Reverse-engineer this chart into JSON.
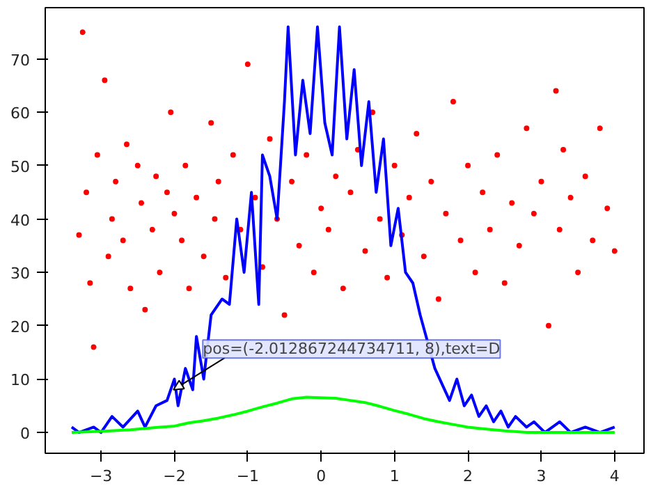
{
  "chart_data": {
    "type": "line",
    "xlim": [
      -3.76,
      4.4
    ],
    "ylim": [
      -3.9,
      79.6
    ],
    "xticks": [
      -3,
      -2,
      -1,
      0,
      1,
      2,
      3,
      4
    ],
    "yticks": [
      0,
      10,
      20,
      30,
      40,
      50,
      60,
      70
    ],
    "grid": false,
    "annotations": [
      {
        "text": "pos=(-2.012867244734711, 8),text=D",
        "x": -2.012867244734711,
        "y": 8
      }
    ],
    "series": [
      {
        "type": "scatter",
        "marker": "circle",
        "color": "#ff0000",
        "x": [
          -3.3,
          -3.25,
          -3.2,
          -3.15,
          -3.1,
          -3.05,
          -2.95,
          -2.9,
          -2.85,
          -2.8,
          -2.7,
          -2.65,
          -2.6,
          -2.5,
          -2.45,
          -2.4,
          -2.3,
          -2.25,
          -2.2,
          -2.1,
          -2.05,
          -2.0,
          -1.9,
          -1.85,
          -1.8,
          -1.7,
          -1.6,
          -1.5,
          -1.45,
          -1.4,
          -1.3,
          -1.2,
          -1.1,
          -1.0,
          -0.9,
          -0.8,
          -0.7,
          -0.6,
          -0.5,
          -0.4,
          -0.3,
          -0.2,
          -0.1,
          0.0,
          0.1,
          0.2,
          0.3,
          0.4,
          0.5,
          0.6,
          0.7,
          0.8,
          0.9,
          1.0,
          1.1,
          1.2,
          1.3,
          1.4,
          1.5,
          1.6,
          1.7,
          1.8,
          1.9,
          2.0,
          2.1,
          2.2,
          2.3,
          2.4,
          2.5,
          2.6,
          2.7,
          2.8,
          2.9,
          3.0,
          3.1,
          3.2,
          3.25,
          3.3,
          3.4,
          3.5,
          3.6,
          3.7,
          3.8,
          3.9,
          4.0
        ],
        "values": [
          37,
          75,
          45,
          28,
          16,
          52,
          66,
          33,
          40,
          47,
          36,
          54,
          27,
          50,
          43,
          23,
          38,
          48,
          30,
          45,
          60,
          41,
          36,
          50,
          27,
          44,
          33,
          58,
          40,
          47,
          29,
          52,
          38,
          69,
          44,
          31,
          55,
          40,
          22,
          47,
          35,
          52,
          30,
          42,
          38,
          48,
          27,
          45,
          53,
          34,
          60,
          40,
          29,
          50,
          37,
          44,
          56,
          33,
          47,
          25,
          41,
          62,
          36,
          50,
          30,
          45,
          38,
          52,
          28,
          43,
          35,
          57,
          41,
          47,
          20,
          64,
          38,
          53,
          44,
          30,
          48,
          36,
          57,
          42,
          34
        ]
      },
      {
        "color": "#0000ff",
        "x": [
          -3.4,
          -3.3,
          -3.1,
          -3.0,
          -2.85,
          -2.7,
          -2.5,
          -2.4,
          -2.25,
          -2.1,
          -2.0,
          -1.95,
          -1.85,
          -1.75,
          -1.7,
          -1.6,
          -1.5,
          -1.35,
          -1.25,
          -1.15,
          -1.05,
          -0.95,
          -0.85,
          -0.8,
          -0.7,
          -0.6,
          -0.5,
          -0.45,
          -0.35,
          -0.25,
          -0.15,
          -0.05,
          0.05,
          0.15,
          0.25,
          0.35,
          0.45,
          0.55,
          0.65,
          0.75,
          0.85,
          0.95,
          1.05,
          1.15,
          1.25,
          1.35,
          1.45,
          1.55,
          1.75,
          1.85,
          1.95,
          2.05,
          2.15,
          2.25,
          2.35,
          2.45,
          2.55,
          2.65,
          2.8,
          2.9,
          3.05,
          3.25,
          3.4,
          3.6,
          3.8,
          4.0
        ],
        "values": [
          1,
          0,
          1,
          0,
          3,
          1,
          4,
          1,
          5,
          6,
          10,
          5,
          12,
          8,
          18,
          10,
          22,
          25,
          24,
          40,
          30,
          45,
          24,
          52,
          48,
          40,
          62,
          76,
          52,
          66,
          56,
          76,
          58,
          52,
          76,
          55,
          68,
          50,
          62,
          45,
          55,
          35,
          42,
          30,
          28,
          22,
          17,
          12,
          6,
          10,
          5,
          7,
          3,
          5,
          2,
          4,
          1,
          3,
          1,
          2,
          0,
          2,
          0,
          1,
          0,
          1
        ]
      },
      {
        "color": "#00ff00",
        "x": [
          -3.4,
          -3.0,
          -2.6,
          -2.2,
          -2.0,
          -1.8,
          -1.6,
          -1.4,
          -1.2,
          -1.0,
          -0.8,
          -0.6,
          -0.4,
          -0.2,
          0.0,
          0.2,
          0.4,
          0.6,
          0.8,
          1.0,
          1.2,
          1.4,
          1.6,
          1.8,
          2.0,
          2.2,
          2.5,
          2.8,
          3.2,
          3.6,
          4.0
        ],
        "values": [
          0,
          0.2,
          0.5,
          1,
          1.2,
          1.8,
          2.2,
          2.7,
          3.3,
          4,
          4.8,
          5.5,
          6.3,
          6.6,
          6.5,
          6.4,
          6,
          5.6,
          4.9,
          4.1,
          3.4,
          2.6,
          2,
          1.5,
          1,
          0.7,
          0.3,
          0,
          0,
          0,
          0
        ]
      }
    ]
  }
}
